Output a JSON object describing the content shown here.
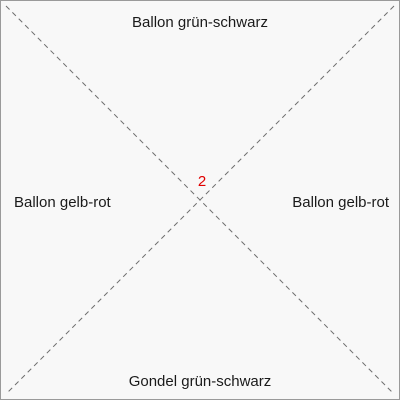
{
  "labels": {
    "top": "Ballon grün-schwarz",
    "bottom": "Gondel grün-schwarz",
    "left": "Ballon gelb-rot",
    "right": "Ballon gelb-rot",
    "center": "2"
  },
  "colors": {
    "background": "#f8f8f8",
    "border": "#9a9a9a",
    "diagonal_lines": "#6e6e6e",
    "center_number": "#e00000",
    "text": "#1a1a1a"
  },
  "line_style": "dashed"
}
